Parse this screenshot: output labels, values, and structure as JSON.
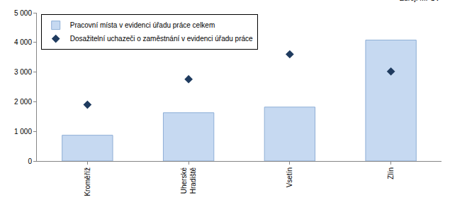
{
  "chart_data": {
    "type": "bar",
    "annotations": [
      "Zdroj: MPSV"
    ],
    "categories": [
      "Kroměříž",
      "Uherské Hradiště",
      "Vsetín",
      "Zlín"
    ],
    "series": [
      {
        "name": "Pracovní místa v evidenci úřadu práce celkem",
        "type": "bar",
        "color": "#c6d9f1",
        "values": [
          870,
          1630,
          1820,
          4080
        ]
      },
      {
        "name": "Dosažitelní uchazeči o zaměstnání v evidenci úřadu práce",
        "type": "scatter",
        "marker": "diamond",
        "color": "#1f3b5f",
        "values": [
          1900,
          2760,
          3600,
          3020
        ]
      }
    ],
    "ylim": [
      0,
      5000
    ],
    "yticks": [
      0,
      {
        "value": 1000,
        "label": "1 000"
      },
      {
        "value": 2000,
        "label": "2 000"
      },
      {
        "value": 3000,
        "label": "3 000"
      },
      {
        "value": 4000,
        "label": "4 000"
      },
      {
        "value": 5000,
        "label": "5 000"
      }
    ],
    "grid": false,
    "legend": "top left"
  }
}
